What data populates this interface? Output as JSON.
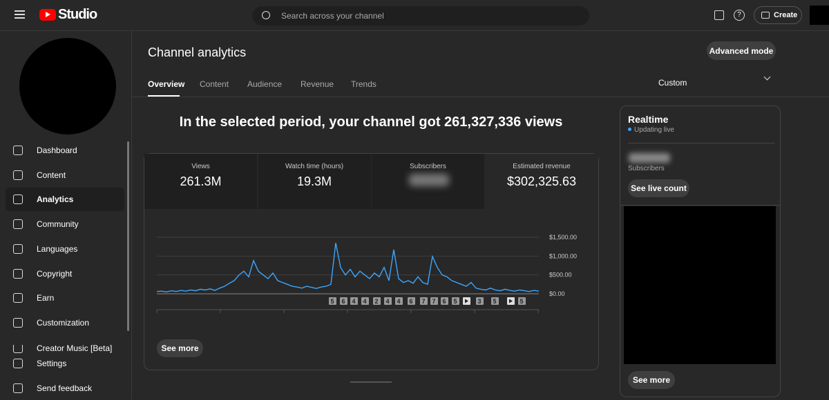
{
  "header": {
    "logo": "Studio",
    "search_placeholder": "Search across your channel",
    "create": "Create"
  },
  "sidebar": {
    "items": [
      "Dashboard",
      "Content",
      "Analytics",
      "Community",
      "Languages",
      "Copyright",
      "Earn",
      "Customization",
      "Creator Music [Beta]"
    ],
    "selected": 2,
    "footer": [
      "Settings",
      "Send feedback"
    ]
  },
  "main": {
    "title": "Channel analytics",
    "advanced_mode": "Advanced mode",
    "tabs": [
      "Overview",
      "Content",
      "Audience",
      "Revenue",
      "Trends"
    ],
    "selected_tab": 0,
    "period": "Custom",
    "headline": "In the selected period, your channel got 261,327,336 views",
    "metrics": [
      {
        "label": "Views",
        "value": "261.3M"
      },
      {
        "label": "Watch time (hours)",
        "value": "19.3M"
      },
      {
        "label": "Subscribers"
      },
      {
        "label": "Estimated revenue",
        "value": "$302,325.63"
      }
    ],
    "chart": {
      "type": "line",
      "color": "#3ea6ff",
      "values": [
        60,
        70,
        50,
        80,
        60,
        90,
        70,
        100,
        80,
        120,
        100,
        130,
        90,
        150,
        200,
        280,
        350,
        500,
        600,
        450,
        880,
        600,
        500,
        400,
        550,
        350,
        300,
        250,
        200,
        180,
        150,
        200,
        170,
        140,
        180,
        200,
        250,
        1350,
        700,
        500,
        650,
        450,
        600,
        500,
        400,
        550,
        450,
        700,
        350,
        1170,
        400,
        300,
        350,
        280,
        450,
        300,
        250,
        990,
        700,
        500,
        450,
        350,
        300,
        250,
        200,
        300,
        150,
        120,
        100,
        150,
        100,
        80,
        120,
        90,
        70,
        100,
        80,
        60,
        90,
        70
      ],
      "ylim": [
        0,
        1500
      ],
      "yticks": [
        {
          "value": 0,
          "label": "$0.00"
        },
        {
          "value": 500,
          "label": "$500.00"
        },
        {
          "value": 1000,
          "label": "$1,000.00"
        },
        {
          "value": 1500,
          "label": "$1,500.00"
        }
      ],
      "markers": [
        "5",
        "6",
        "4",
        "4",
        "2",
        "4",
        "4",
        "6",
        "7",
        "7",
        "6",
        "5",
        null,
        "3",
        "5",
        null,
        "5"
      ]
    },
    "see_more": "See more"
  },
  "realtime": {
    "title": "Realtime",
    "status": "Updating live",
    "subscribers_label": "Subscribers",
    "see_live_count": "See live count",
    "see_more": "See more"
  }
}
